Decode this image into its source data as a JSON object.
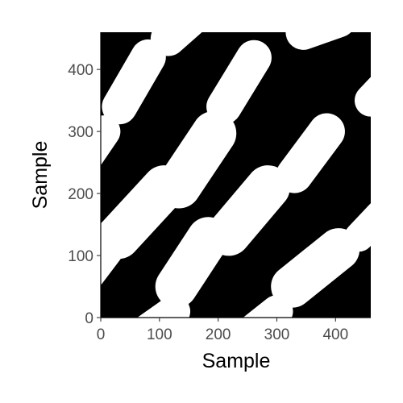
{
  "chart_data": {
    "type": "heatmap",
    "title": "",
    "xlabel": "Sample",
    "ylabel": "Sample",
    "xlim": [
      0,
      460
    ],
    "ylim": [
      0,
      460
    ],
    "x_ticks": [
      0,
      100,
      200,
      300,
      400
    ],
    "y_ticks": [
      0,
      100,
      200,
      300,
      400
    ],
    "x_tick_labels": [
      "0",
      "100",
      "200",
      "300",
      "400"
    ],
    "y_tick_labels": [
      "0",
      "100",
      "200",
      "300",
      "400"
    ],
    "grid": false,
    "legend": "none",
    "values_description": "binary recurrence plot (0 = black, 1 = white)",
    "colors": {
      "background": "#000000",
      "foreground": "#ffffff",
      "tick_text": "#4d4d4d",
      "axis_text": "#000000"
    },
    "white_regions": [
      {
        "x1": 32,
        "y1": 340,
        "x2": 81,
        "y2": 420,
        "width": 60
      },
      {
        "x1": 115,
        "y1": 450,
        "x2": 163,
        "y2": 490,
        "width": 60
      },
      {
        "x1": 210,
        "y1": 340,
        "x2": 261,
        "y2": 419,
        "width": 60
      },
      {
        "x1": 345,
        "y1": 460,
        "x2": 405,
        "y2": 480,
        "width": 60
      },
      {
        "x1": 460,
        "y1": 350,
        "x2": 490,
        "y2": 380,
        "width": 55
      },
      {
        "x1": -30,
        "y1": 250,
        "x2": 6,
        "y2": 300,
        "width": 55
      },
      {
        "x1": 133,
        "y1": 212,
        "x2": 193,
        "y2": 297,
        "width": 76
      },
      {
        "x1": 330,
        "y1": 230,
        "x2": 385,
        "y2": 300,
        "width": 62
      },
      {
        "x1": 30,
        "y1": 130,
        "x2": 108,
        "y2": 210,
        "width": 75
      },
      {
        "x1": 218,
        "y1": 135,
        "x2": 285,
        "y2": 210,
        "width": 75
      },
      {
        "x1": -30,
        "y1": 60,
        "x2": 10,
        "y2": 110,
        "width": 58
      },
      {
        "x1": 129,
        "y1": 50,
        "x2": 183,
        "y2": 128,
        "width": 72
      },
      {
        "x1": 326,
        "y1": 50,
        "x2": 405,
        "y2": 110,
        "width": 72
      },
      {
        "x1": 440,
        "y1": 130,
        "x2": 480,
        "y2": 170,
        "width": 50
      },
      {
        "x1": 80,
        "y1": -20,
        "x2": 125,
        "y2": 10,
        "width": 55
      },
      {
        "x1": 260,
        "y1": -20,
        "x2": 300,
        "y2": 10,
        "width": 55
      }
    ]
  }
}
